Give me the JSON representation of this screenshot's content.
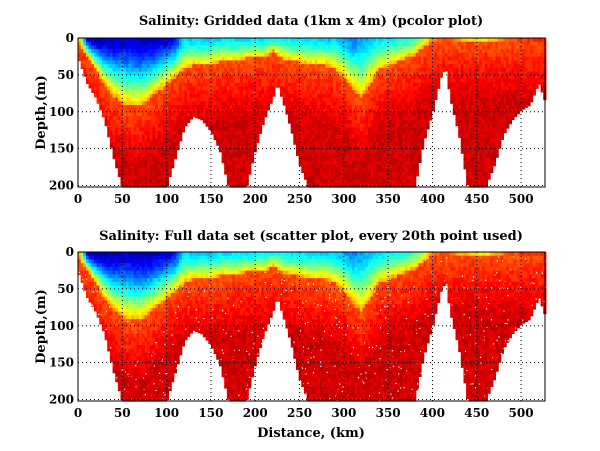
{
  "chart_data": [
    {
      "type": "heatmap",
      "title": "Salinity: Gridded data (1km x 4m) (pcolor plot)",
      "xlabel": "",
      "ylabel": "Depth,(m)",
      "xlim": [
        0,
        527
      ],
      "ylim": [
        200,
        0
      ],
      "xticks": [
        "0",
        "50",
        "100",
        "150",
        "200",
        "250",
        "300",
        "350",
        "400",
        "450",
        "500"
      ],
      "yticks": [
        "0",
        "50",
        "100",
        "150",
        "200"
      ],
      "grid": true,
      "colormap": "jet",
      "value_scale": "normalized 0-1 (no colorbar shown)"
    },
    {
      "type": "scatter",
      "title": "Salinity: Full data set (scatter plot, every 20th point used)",
      "xlabel": "Distance, (km)",
      "ylabel": "Depth,(m)",
      "xlim": [
        0,
        527
      ],
      "ylim": [
        200,
        0
      ],
      "xticks": [
        "0",
        "50",
        "100",
        "150",
        "200",
        "250",
        "300",
        "350",
        "400",
        "450",
        "500"
      ],
      "yticks": [
        "0",
        "50",
        "100",
        "150",
        "200"
      ],
      "grid": true,
      "colormap": "jet",
      "value_scale": "normalized 0-1 (no colorbar shown)"
    }
  ],
  "section": {
    "distance_km": [
      0,
      10,
      20,
      30,
      40,
      50,
      60,
      70,
      80,
      90,
      100,
      110,
      120,
      130,
      140,
      150,
      160,
      170,
      180,
      190,
      200,
      210,
      220,
      225,
      230,
      240,
      250,
      260,
      270,
      280,
      290,
      300,
      310,
      320,
      330,
      340,
      350,
      360,
      370,
      380,
      390,
      400,
      410,
      415,
      420,
      430,
      440,
      450,
      460,
      470,
      480,
      490,
      500,
      510,
      520,
      530,
      540
    ],
    "bottom_depth_m": [
      25,
      60,
      80,
      110,
      160,
      200,
      200,
      200,
      200,
      200,
      200,
      160,
      120,
      105,
      110,
      125,
      150,
      200,
      200,
      200,
      150,
      110,
      80,
      60,
      80,
      120,
      170,
      200,
      200,
      200,
      200,
      200,
      200,
      200,
      200,
      200,
      200,
      200,
      200,
      200,
      140,
      100,
      50,
      40,
      80,
      130,
      200,
      200,
      200,
      170,
      130,
      110,
      97,
      90,
      60,
      95,
      100
    ],
    "fresh_layer_depth_m": [
      5,
      20,
      40,
      60,
      75,
      85,
      90,
      90,
      80,
      70,
      60,
      50,
      40,
      35,
      35,
      35,
      30,
      30,
      30,
      25,
      25,
      25,
      15,
      20,
      25,
      30,
      30,
      35,
      35,
      35,
      40,
      50,
      65,
      80,
      60,
      40,
      35,
      30,
      25,
      20,
      10,
      3,
      2,
      2,
      2,
      2,
      2,
      2,
      2,
      2,
      2,
      2,
      2,
      2,
      2,
      2,
      2
    ],
    "surface_value": [
      0.8,
      0.1,
      0.05,
      0.05,
      0.05,
      0.08,
      0.08,
      0.05,
      0.05,
      0.08,
      0.1,
      0.15,
      0.35,
      0.33,
      0.32,
      0.33,
      0.35,
      0.35,
      0.35,
      0.35,
      0.36,
      0.36,
      0.38,
      0.4,
      0.38,
      0.36,
      0.35,
      0.35,
      0.34,
      0.33,
      0.33,
      0.3,
      0.25,
      0.28,
      0.32,
      0.35,
      0.36,
      0.38,
      0.4,
      0.45,
      0.55,
      0.75,
      0.8,
      0.8,
      0.78,
      0.72,
      0.68,
      0.65,
      0.65,
      0.68,
      0.75,
      0.8,
      0.82,
      0.83,
      0.83,
      0.83,
      0.83
    ]
  },
  "colors": {
    "background": "#ffffff",
    "axis": "#000000"
  }
}
